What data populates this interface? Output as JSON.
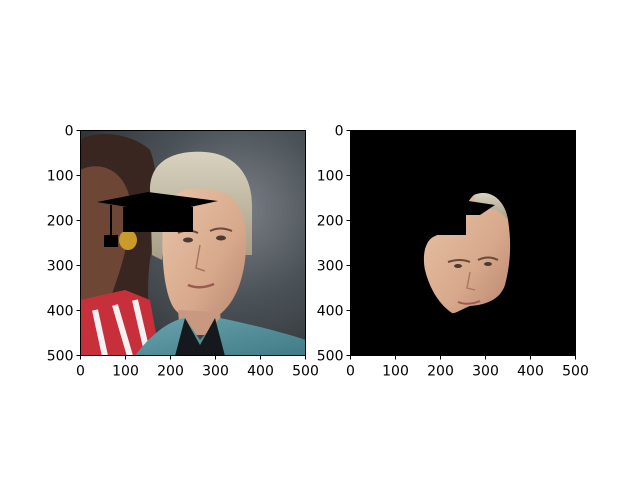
{
  "figure": {
    "panels": [
      {
        "name": "left-panel",
        "image": "photo of a man with light hair in a teal shirt, a woman with curly hair partly visible at left, and a black graduation cap overlay on the upper left area",
        "x_ticks": [
          "0",
          "100",
          "200",
          "300",
          "400",
          "500"
        ],
        "y_ticks": [
          "0",
          "100",
          "200",
          "300",
          "400",
          "500"
        ]
      },
      {
        "name": "right-panel",
        "image": "black background with only the man's face region visible, partially covered by a black shape",
        "x_ticks": [
          "0",
          "100",
          "200",
          "300",
          "400",
          "500"
        ],
        "y_ticks": [
          "0",
          "100",
          "200",
          "300",
          "400",
          "500"
        ]
      }
    ]
  }
}
